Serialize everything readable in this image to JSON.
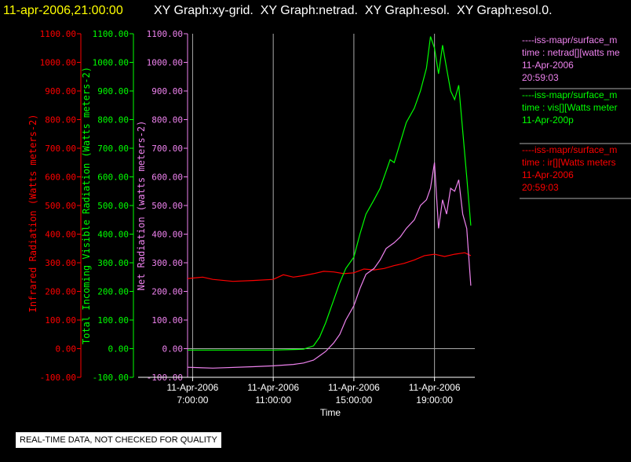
{
  "header": {
    "timestamp": "11-apr-2006,21:00:00",
    "graph_list": "XY Graph:xy-grid.  XY Graph:netrad.  XY Graph:esol.  XY Graph:esol.0.",
    "timestamp_color": "#ffff00",
    "graph_list_color": "#ffffff"
  },
  "quality_note": "REAL-TIME DATA, NOT CHECKED FOR QUALITY",
  "chart_data": {
    "type": "line",
    "xlabel": "Time",
    "x_ticks": [
      {
        "date": "11-Apr-2006",
        "time": "7:00:00",
        "value": 7
      },
      {
        "date": "11-Apr-2006",
        "time": "11:00:00",
        "value": 11
      },
      {
        "date": "11-Apr-2006",
        "time": "15:00:00",
        "value": 15
      },
      {
        "date": "11-Apr-2006",
        "time": "19:00:00",
        "value": 19
      }
    ],
    "xlim_hours": [
      6.75,
      21.0
    ],
    "grid": true,
    "y_axes": [
      {
        "id": "ir",
        "label": "Infrared Radiation (Watts meters-2)",
        "color": "#ff0000",
        "ticks": [
          "1100.00",
          "1000.00",
          "900.00",
          "800.00",
          "700.00",
          "600.00",
          "500.00",
          "400.00",
          "300.00",
          "200.00",
          "100.00",
          "0.00",
          "-100.00"
        ]
      },
      {
        "id": "vis",
        "label": "Total Incoming Visible Radiation (Watts meters-2)",
        "color": "#00ff00",
        "ticks": [
          "1100.00",
          "1000.00",
          "900.00",
          "800.00",
          "700.00",
          "600.00",
          "500.00",
          "400.00",
          "300.00",
          "200.00",
          "100.00",
          "0.00",
          "-100.00"
        ]
      },
      {
        "id": "net",
        "label": "Net Radiation (watts meters-2)",
        "color": "#ee82ee",
        "ticks": [
          "1100.00",
          "1000.00",
          "900.00",
          "800.00",
          "700.00",
          "600.00",
          "500.00",
          "400.00",
          "300.00",
          "200.00",
          "100.00",
          "0.00",
          "-100.00"
        ]
      }
    ],
    "ylim": [
      -100,
      1100
    ],
    "series": [
      {
        "axis": "ir",
        "color": "#ff0000",
        "x": [
          6.75,
          7.5,
          8.0,
          9.0,
          10.0,
          11.0,
          11.5,
          12.0,
          12.5,
          13.0,
          13.5,
          14.0,
          14.5,
          15.0,
          15.5,
          16.0,
          16.5,
          17.0,
          17.5,
          18.0,
          18.5,
          19.0,
          19.5,
          20.0,
          20.5,
          20.8
        ],
        "y": [
          245,
          250,
          242,
          235,
          238,
          242,
          258,
          250,
          255,
          262,
          270,
          268,
          262,
          265,
          278,
          275,
          280,
          290,
          298,
          310,
          325,
          330,
          322,
          330,
          335,
          325
        ]
      },
      {
        "axis": "vis",
        "color": "#00ff00",
        "x": [
          6.75,
          8.0,
          10.0,
          11.0,
          12.0,
          12.5,
          13.0,
          13.3,
          13.6,
          14.0,
          14.3,
          14.6,
          15.0,
          15.3,
          15.6,
          16.0,
          16.3,
          16.6,
          16.8,
          17.0,
          17.3,
          17.6,
          18.0,
          18.3,
          18.6,
          18.8,
          19.0,
          19.2,
          19.4,
          19.6,
          19.8,
          20.0,
          20.2,
          20.4,
          20.6,
          20.8
        ],
        "y": [
          -5,
          -5,
          -5,
          -5,
          -3,
          -2,
          10,
          40,
          90,
          170,
          230,
          280,
          320,
          400,
          470,
          520,
          560,
          620,
          660,
          650,
          720,
          790,
          840,
          900,
          980,
          1090,
          1050,
          960,
          1060,
          980,
          900,
          870,
          920,
          760,
          600,
          430
        ]
      },
      {
        "axis": "net",
        "color": "#ee82ee",
        "x": [
          6.75,
          8.0,
          10.0,
          11.0,
          12.0,
          12.5,
          13.0,
          13.3,
          13.6,
          14.0,
          14.3,
          14.6,
          15.0,
          15.3,
          15.6,
          16.0,
          16.3,
          16.6,
          17.0,
          17.3,
          17.6,
          18.0,
          18.3,
          18.6,
          18.8,
          19.0,
          19.2,
          19.4,
          19.6,
          19.8,
          20.0,
          20.2,
          20.4,
          20.6,
          20.8
        ],
        "y": [
          -65,
          -68,
          -63,
          -60,
          -55,
          -50,
          -40,
          -25,
          -10,
          20,
          50,
          100,
          150,
          210,
          260,
          280,
          310,
          350,
          370,
          390,
          420,
          450,
          500,
          520,
          560,
          650,
          420,
          520,
          470,
          560,
          550,
          590,
          470,
          420,
          220
        ]
      }
    ]
  },
  "legend": [
    {
      "line1": "----iss-mapr/surface_m",
      "line2": "time : netrad[][watts me",
      "line3": "11-Apr-2006",
      "line4": "20:59:03",
      "color": "#ee82ee"
    },
    {
      "line1": "----iss-mapr/surface_m",
      "line2": "time : vis[][Watts meter",
      "line3": "11-Apr-200p",
      "line4": "",
      "color": "#00ff00"
    },
    {
      "line1": "----iss-mapr/surface_m",
      "line2": "time : ir[][Watts meters",
      "line3": "11-Apr-2006",
      "line4": "20:59:03",
      "color": "#ff0000"
    }
  ]
}
